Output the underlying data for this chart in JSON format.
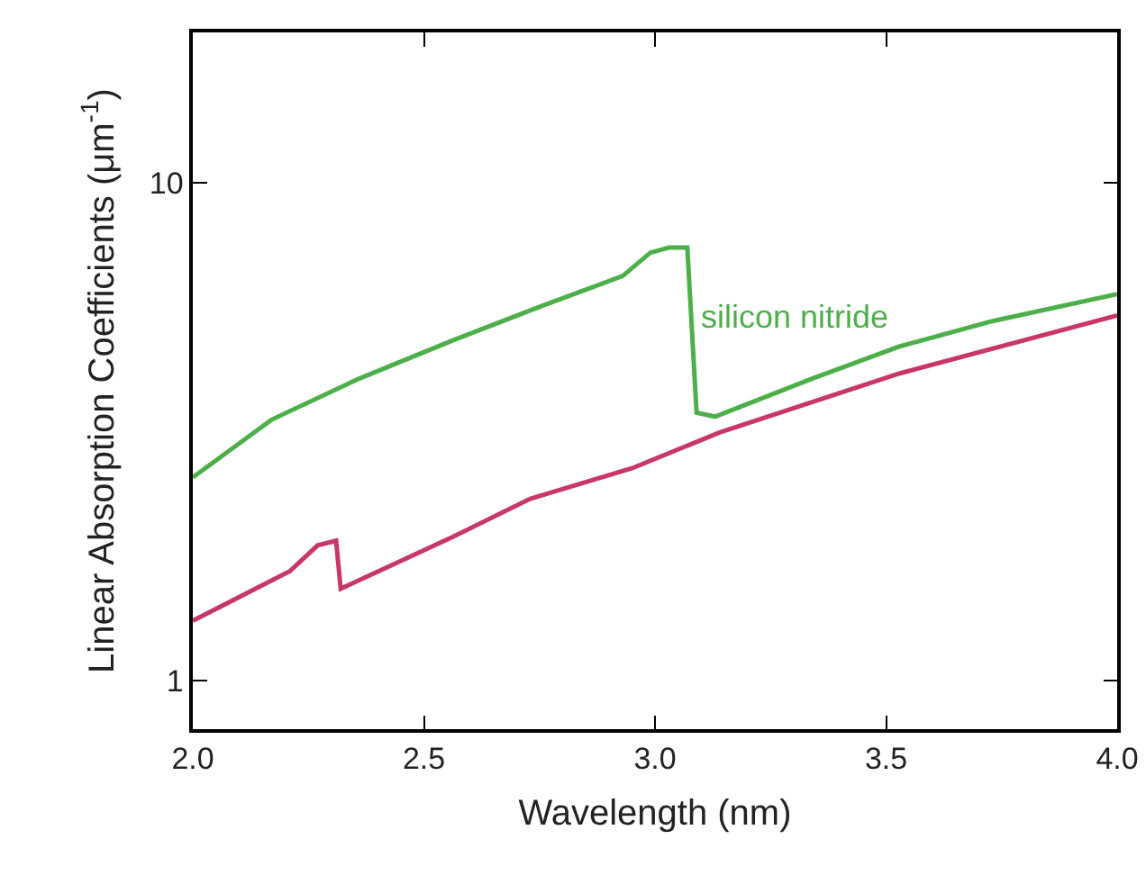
{
  "chart_data": {
    "type": "line",
    "xlabel": "Wavelength (nm)",
    "ylabel": "Linear Absorption Coefficients (μm$^{-1}$)",
    "log": "y",
    "grid": false,
    "legend": false,
    "marker": "none",
    "line_style": "solid",
    "xlim": [
      2.0,
      4.0
    ],
    "xticks": [
      {
        "value": 2,
        "label": "2.0"
      },
      {
        "value": 2.5,
        "label": "2.5"
      },
      {
        "value": 3,
        "label": "3.0"
      },
      {
        "value": 3.5,
        "label": "3.5"
      },
      {
        "value": 4,
        "label": "4.0"
      }
    ],
    "ylim": [
      0.8,
      20
    ],
    "yticks": [
      1,
      10
    ],
    "series": [
      {
        "name": "silicon nitride",
        "color": "#4daf4a",
        "x": [
          2.0,
          2.17,
          2.36,
          2.56,
          2.75,
          2.93,
          2.99,
          3.03,
          3.07,
          3.09,
          3.13,
          3.34,
          3.53,
          3.73,
          4.0
        ],
        "values": [
          2.56,
          3.34,
          4.04,
          4.81,
          5.63,
          6.49,
          7.23,
          7.4,
          7.4,
          3.45,
          3.39,
          4.04,
          4.69,
          5.27,
          5.97
        ]
      },
      {
        "color": "#c8366a",
        "x": [
          2.0,
          2.21,
          2.27,
          2.31,
          2.32,
          2.56,
          2.73,
          2.95,
          3.14,
          3.53,
          4.0
        ],
        "values": [
          1.32,
          1.66,
          1.87,
          1.91,
          1.53,
          1.94,
          2.32,
          2.67,
          3.15,
          4.14,
          5.41
        ]
      }
    ]
  }
}
